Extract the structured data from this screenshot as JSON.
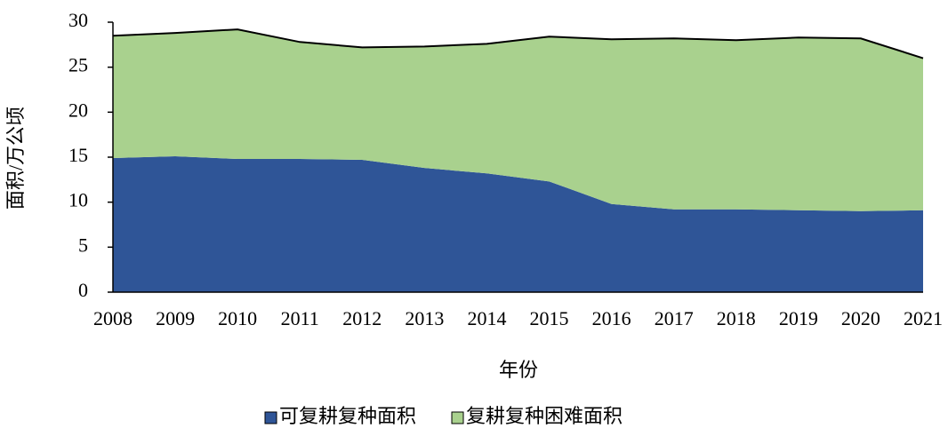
{
  "chart_data": {
    "type": "stacked_area",
    "x_label": "年份",
    "y_label": "面积/万公顷",
    "categories": [
      "2008",
      "2009",
      "2010",
      "2011",
      "2012",
      "2013",
      "2014",
      "2015",
      "2016",
      "2017",
      "2018",
      "2019",
      "2020",
      "2021"
    ],
    "series": [
      {
        "name": "可复耕复种面积",
        "color": "#2f5597",
        "values": [
          14.9,
          15.1,
          14.8,
          14.8,
          14.7,
          13.8,
          13.2,
          12.3,
          9.8,
          9.2,
          9.2,
          9.1,
          9.0,
          9.1
        ]
      },
      {
        "name": "复耕复种困难面积",
        "color": "#a9d18e",
        "values": [
          13.6,
          13.7,
          14.4,
          13.0,
          12.5,
          13.5,
          14.4,
          16.1,
          18.3,
          19.0,
          18.8,
          19.2,
          19.2,
          16.9
        ]
      }
    ],
    "ylim": [
      0,
      30
    ],
    "yticks": [
      0,
      5,
      10,
      15,
      20,
      25,
      30
    ],
    "legend": "bottom"
  }
}
